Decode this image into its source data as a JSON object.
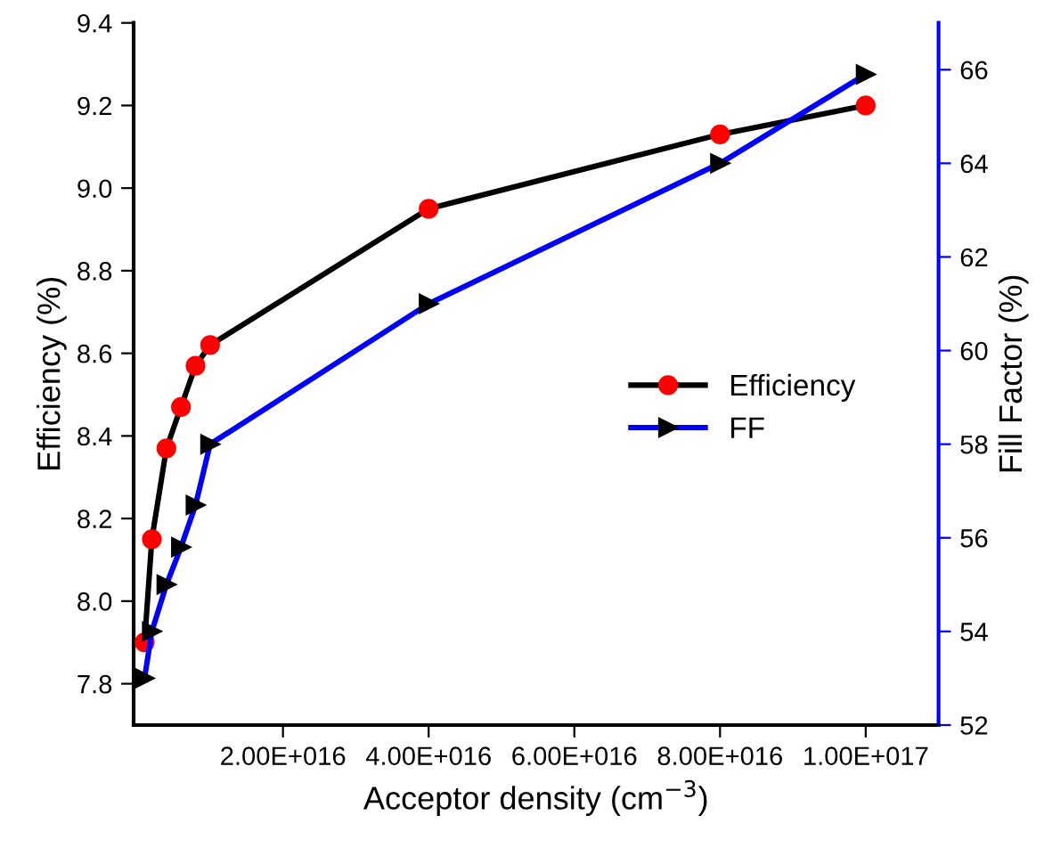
{
  "chart_data": {
    "type": "line",
    "xlabel": "Acceptor density (cm$^{−3}$)",
    "ylabel": "Efficiency (%)",
    "y2label": "Fill Factor (%)",
    "x": [
      1000000000000000.0,
      2000000000000000.0,
      4000000000000000.0,
      6000000000000000.0,
      8000000000000000.0,
      1e+16,
      4e+16,
      8e+16,
      1e+17
    ],
    "series": [
      {
        "name": "Efficiency",
        "color": "#000000",
        "marker": "circle",
        "values": [
          7.9,
          8.15,
          8.37,
          8.47,
          8.57,
          8.62,
          8.95,
          9.13,
          9.2
        ]
      },
      {
        "name": "FF",
        "color": "#0000ff",
        "marker": "triangle",
        "axis": "y2",
        "values": [
          53.0,
          54.0,
          55.0,
          55.8,
          56.7,
          58.0,
          61.0,
          64.0,
          65.9
        ]
      }
    ],
    "xlim": [
      -500000000000000.0,
      1.1e+17
    ],
    "xticks": [
      {
        "value": 2e+16,
        "label": "2.00E+016"
      },
      {
        "value": 4e+16,
        "label": "4.00E+016"
      },
      {
        "value": 6e+16,
        "label": "6.00E+016"
      },
      {
        "value": 8e+16,
        "label": "8.00E+016"
      },
      {
        "value": 1e+17,
        "label": "1.00E+017"
      }
    ],
    "ylim": [
      7.7,
      9.4
    ],
    "yticks": [
      7.8,
      {
        "value": 8,
        "label": "8.0"
      },
      8.2,
      8.4,
      8.6,
      8.8,
      {
        "value": 9,
        "label": "9.0"
      },
      9.2,
      9.4
    ],
    "y2lim": [
      52,
      67
    ],
    "y2ticks": [
      52,
      54,
      56,
      58,
      60,
      62,
      64,
      66
    ],
    "grid": false,
    "legend": "right",
    "line_style": "solid"
  }
}
